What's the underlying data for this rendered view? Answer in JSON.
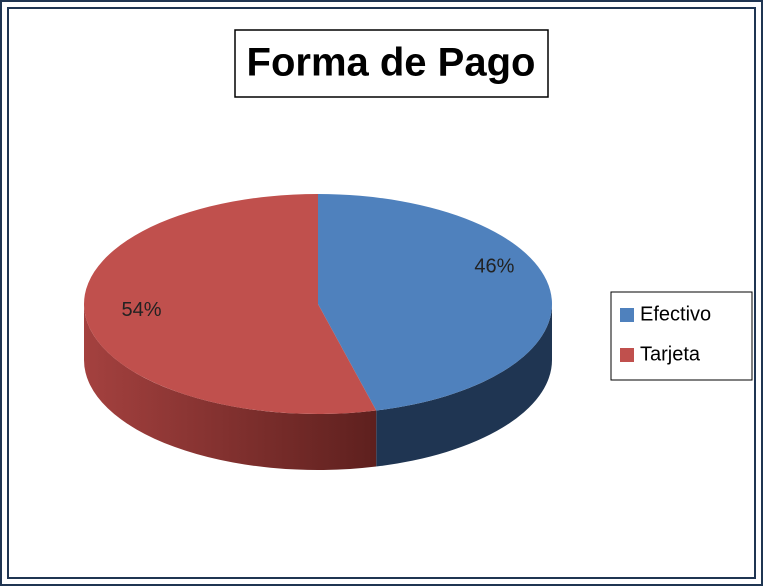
{
  "chart_data": {
    "type": "pie",
    "title": "Forma de Pago",
    "categories": [
      "Efectivo",
      "Tarjeta"
    ],
    "values": [
      46,
      54
    ],
    "value_labels": [
      "46%",
      "54%"
    ],
    "colors": [
      "#4f81bd",
      "#c0504d"
    ],
    "legend": "right"
  }
}
